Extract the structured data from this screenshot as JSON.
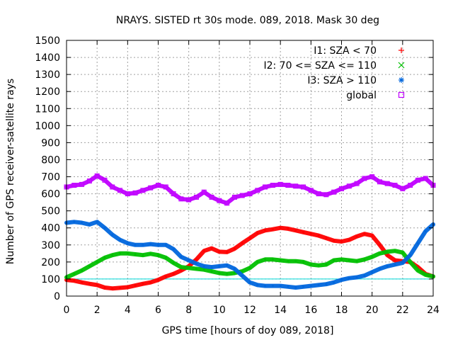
{
  "colors": {
    "I1": "#ff0000",
    "I2": "#00c000",
    "I3": "#0066dd",
    "global": "#c000ff",
    "threshold": "#00d8d8",
    "axis": "#000000",
    "grid": "#a0a0a0"
  },
  "chart_data": {
    "type": "line",
    "title": "NRAYS. SISTED rt 30s mode. 089, 2018. Mask 30 deg",
    "xlabel": "GPS time [hours of doy 089, 2018]",
    "ylabel": "Number of GPS receiver-satellite rays",
    "xlim": [
      0,
      24
    ],
    "ylim": [
      0,
      1500
    ],
    "xticks": [
      0,
      2,
      4,
      6,
      8,
      10,
      12,
      14,
      16,
      18,
      20,
      22,
      24
    ],
    "yticks": [
      0,
      100,
      200,
      300,
      400,
      500,
      600,
      700,
      800,
      900,
      1000,
      1100,
      1200,
      1300,
      1400,
      1500
    ],
    "grid": true,
    "legend_position": "top-right",
    "threshold_line": 100,
    "x": [
      0,
      0.5,
      1,
      1.5,
      2,
      2.5,
      3,
      3.5,
      4,
      4.5,
      5,
      5.5,
      6,
      6.5,
      7,
      7.5,
      8,
      8.5,
      9,
      9.5,
      10,
      10.5,
      11,
      11.5,
      12,
      12.5,
      13,
      13.5,
      14,
      14.5,
      15,
      15.5,
      16,
      16.5,
      17,
      17.5,
      18,
      18.5,
      19,
      19.5,
      20,
      20.5,
      21,
      21.5,
      22,
      22.5,
      23,
      23.5,
      24
    ],
    "series": [
      {
        "name": "I1: SZA < 70",
        "marker": "+",
        "color_key": "I1",
        "values": [
          95,
          90,
          80,
          72,
          65,
          50,
          45,
          48,
          52,
          62,
          72,
          80,
          95,
          115,
          130,
          150,
          175,
          215,
          265,
          280,
          260,
          258,
          278,
          310,
          340,
          370,
          385,
          392,
          400,
          395,
          385,
          375,
          365,
          355,
          340,
          325,
          320,
          330,
          350,
          365,
          355,
          300,
          240,
          210,
          205,
          200,
          170,
          130,
          115
        ]
      },
      {
        "name": "I2: 70 <= SZA <= 110",
        "marker": "x",
        "color_key": "I2",
        "values": [
          110,
          130,
          150,
          175,
          200,
          225,
          240,
          250,
          250,
          245,
          240,
          248,
          240,
          225,
          195,
          170,
          165,
          160,
          155,
          145,
          135,
          130,
          135,
          145,
          165,
          200,
          215,
          215,
          210,
          205,
          205,
          200,
          185,
          180,
          185,
          210,
          215,
          210,
          205,
          215,
          230,
          250,
          260,
          265,
          255,
          200,
          150,
          125,
          115
        ]
      },
      {
        "name": "I3: SZA > 110",
        "marker": "*",
        "color_key": "I3",
        "values": [
          430,
          435,
          430,
          420,
          435,
          400,
          360,
          330,
          310,
          300,
          300,
          305,
          300,
          300,
          275,
          230,
          210,
          190,
          175,
          170,
          175,
          180,
          160,
          120,
          80,
          65,
          60,
          60,
          60,
          55,
          50,
          55,
          60,
          65,
          70,
          80,
          95,
          105,
          110,
          120,
          140,
          160,
          175,
          185,
          195,
          240,
          310,
          380,
          420
        ]
      },
      {
        "name": "global",
        "marker": "square",
        "color_key": "global",
        "values": [
          640,
          650,
          655,
          675,
          705,
          680,
          640,
          620,
          600,
          605,
          620,
          635,
          650,
          640,
          600,
          570,
          565,
          580,
          610,
          580,
          560,
          545,
          580,
          590,
          600,
          620,
          640,
          650,
          655,
          650,
          645,
          640,
          620,
          600,
          595,
          610,
          630,
          645,
          660,
          690,
          700,
          670,
          660,
          650,
          630,
          650,
          680,
          690,
          650
        ]
      }
    ]
  }
}
